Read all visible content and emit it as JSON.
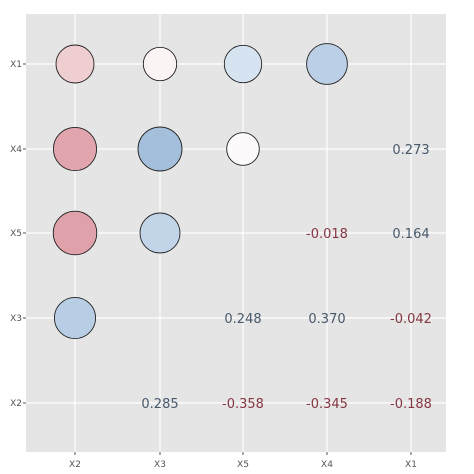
{
  "chart_data": {
    "type": "correlation-matrix",
    "title": "",
    "xlabel": "",
    "ylabel": "",
    "x_categories": [
      "X2",
      "X3",
      "X5",
      "X4",
      "X1"
    ],
    "y_categories": [
      "X1",
      "X4",
      "X5",
      "X3",
      "X2"
    ],
    "grid": true,
    "background": "#e5e5e5",
    "gridline_color": "#ffffff",
    "positive_color": "#2166ac",
    "negative_color": "#b2182b",
    "circles": [
      {
        "x": "X2",
        "y": "X1",
        "value": -0.188
      },
      {
        "x": "X3",
        "y": "X1",
        "value": -0.042
      },
      {
        "x": "X5",
        "y": "X1",
        "value": 0.164
      },
      {
        "x": "X4",
        "y": "X1",
        "value": 0.273
      },
      {
        "x": "X2",
        "y": "X4",
        "value": -0.345
      },
      {
        "x": "X3",
        "y": "X4",
        "value": 0.37
      },
      {
        "x": "X5",
        "y": "X4",
        "value": -0.018
      },
      {
        "x": "X2",
        "y": "X5",
        "value": -0.358
      },
      {
        "x": "X3",
        "y": "X5",
        "value": 0.248
      },
      {
        "x": "X2",
        "y": "X3",
        "value": 0.285
      }
    ],
    "labels": [
      {
        "x": "X1",
        "y": "X4",
        "text": "0.273",
        "value": 0.273
      },
      {
        "x": "X4",
        "y": "X5",
        "text": "-0.018",
        "value": -0.018
      },
      {
        "x": "X1",
        "y": "X5",
        "text": "0.164",
        "value": 0.164
      },
      {
        "x": "X5",
        "y": "X3",
        "text": "0.248",
        "value": 0.248
      },
      {
        "x": "X4",
        "y": "X3",
        "text": "0.370",
        "value": 0.37
      },
      {
        "x": "X1",
        "y": "X3",
        "text": "-0.042",
        "value": -0.042
      },
      {
        "x": "X3",
        "y": "X2",
        "text": "0.285",
        "value": 0.285
      },
      {
        "x": "X5",
        "y": "X2",
        "text": "-0.358",
        "value": -0.358
      },
      {
        "x": "X4",
        "y": "X2",
        "text": "-0.345",
        "value": -0.345
      },
      {
        "x": "X1",
        "y": "X2",
        "text": "-0.188",
        "value": -0.188
      }
    ]
  }
}
